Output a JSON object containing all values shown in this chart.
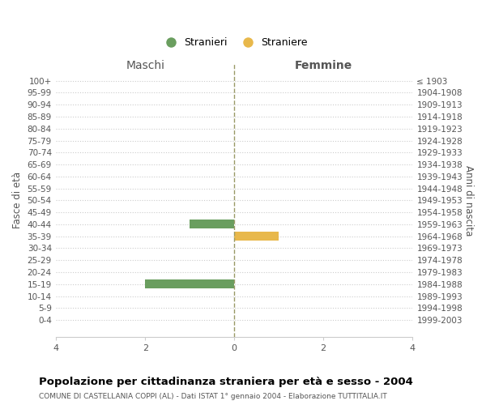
{
  "age_groups": [
    "100+",
    "95-99",
    "90-94",
    "85-89",
    "80-84",
    "75-79",
    "70-74",
    "65-69",
    "60-64",
    "55-59",
    "50-54",
    "45-49",
    "40-44",
    "35-39",
    "30-34",
    "25-29",
    "20-24",
    "15-19",
    "10-14",
    "5-9",
    "0-4"
  ],
  "birth_years": [
    "≤ 1903",
    "1904-1908",
    "1909-1913",
    "1914-1918",
    "1919-1923",
    "1924-1928",
    "1929-1933",
    "1934-1938",
    "1939-1943",
    "1944-1948",
    "1949-1953",
    "1954-1958",
    "1959-1963",
    "1964-1968",
    "1969-1973",
    "1974-1978",
    "1979-1983",
    "1984-1988",
    "1989-1993",
    "1994-1998",
    "1999-2003"
  ],
  "males": [
    0,
    0,
    0,
    0,
    0,
    0,
    0,
    0,
    0,
    0,
    0,
    0,
    1,
    0,
    0,
    0,
    0,
    2,
    0,
    0,
    0
  ],
  "females": [
    0,
    0,
    0,
    0,
    0,
    0,
    0,
    0,
    0,
    0,
    0,
    0,
    0,
    1,
    0,
    0,
    0,
    0,
    0,
    0,
    0
  ],
  "male_color": "#6a9e5f",
  "female_color": "#e8b84b",
  "xlim": 4,
  "title": "Popolazione per cittadinanza straniera per età e sesso - 2004",
  "subtitle": "COMUNE DI CASTELLANIA COPPI (AL) - Dati ISTAT 1° gennaio 2004 - Elaborazione TUTTITALIA.IT",
  "ylabel_left": "Fasce di età",
  "ylabel_right": "Anni di nascita",
  "header_left": "Maschi",
  "header_right": "Femmine",
  "legend_male": "Stranieri",
  "legend_female": "Straniere",
  "bg_color": "#ffffff",
  "grid_color": "#cccccc",
  "bar_height": 0.75
}
